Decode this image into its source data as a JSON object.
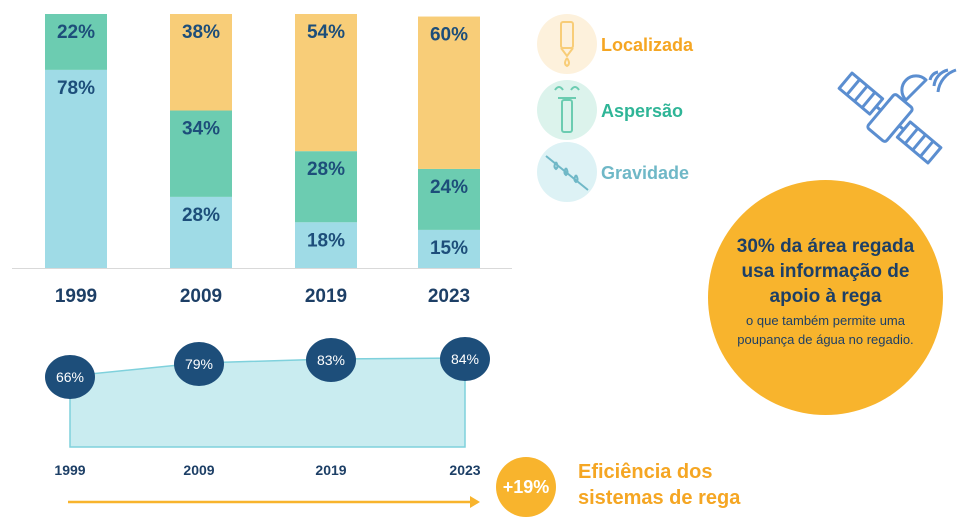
{
  "chart_data": [
    {
      "type": "bar",
      "stacked": true,
      "categories": [
        "1999",
        "2009",
        "2019",
        "2023"
      ],
      "series": [
        {
          "name": "Gravidade",
          "values": [
            78,
            28,
            18,
            15
          ],
          "labels": [
            "78%",
            "28%",
            "18%",
            "15%"
          ],
          "color": "#9fdbe6"
        },
        {
          "name": "Aspersão",
          "values": [
            22,
            34,
            28,
            24
          ],
          "labels": [
            "22%",
            "34%",
            "28%",
            "24%"
          ],
          "color": "#6cccb1"
        },
        {
          "name": "Localizada",
          "values": [
            0,
            38,
            54,
            60
          ],
          "labels": [
            "",
            "38%",
            "54%",
            "60%"
          ],
          "color": "#f8cd78"
        }
      ],
      "ylim": [
        0,
        100
      ]
    },
    {
      "type": "area",
      "x": [
        "1999",
        "2009",
        "2019",
        "2023"
      ],
      "values": [
        66,
        79,
        83,
        84
      ],
      "labels": [
        "66%",
        "79%",
        "83%",
        "84%"
      ],
      "fill_color": "#c9ecf0",
      "line_color": "#7fd1dc",
      "marker_color": "#1d4e7a"
    }
  ],
  "legend": [
    {
      "name": "Localizada",
      "icon": "dripper-icon",
      "color": "#f5a623",
      "bg": "#fdf1dc"
    },
    {
      "name": "Aspersão",
      "icon": "sprinkler-icon",
      "color": "#2fb597",
      "bg": "#dcf3ec"
    },
    {
      "name": "Gravidade",
      "icon": "furrow-icon",
      "color": "#6fb8c7",
      "bg": "#ddf2f5"
    }
  ],
  "info_circle": {
    "line1": "30% da área regada",
    "line2": "usa informação de",
    "line3": "apoio à rega",
    "sub1": "o que também permite uma",
    "sub2": "poupança  de água no regadio.",
    "color": "#f8b42d"
  },
  "efficiency": {
    "badge": "+19%",
    "line1": "Eficiência dos",
    "line2": "sistemas de rega",
    "color": "#f5a623"
  },
  "satellite_icon": "satellite-icon"
}
